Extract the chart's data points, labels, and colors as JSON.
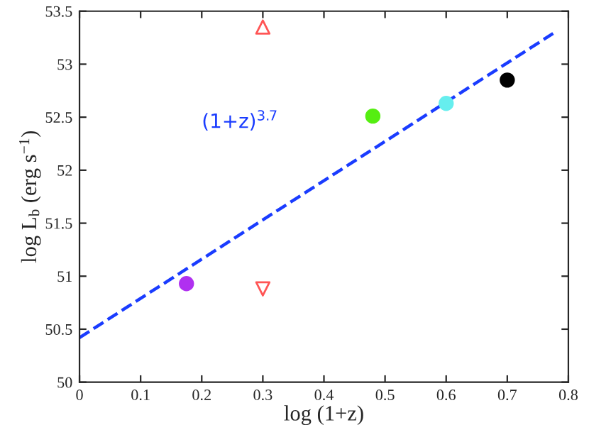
{
  "chart_data": {
    "type": "scatter",
    "xlabel": "log (1+z)",
    "ylabel": "log L$_{b}$ (erg s$^{−1}$)",
    "xlim": [
      0,
      0.8
    ],
    "ylim": [
      50,
      53.5
    ],
    "xticks": [
      0,
      0.1,
      0.2,
      0.3,
      0.4,
      0.5,
      0.6,
      0.7,
      0.8
    ],
    "yticks": [
      50,
      50.5,
      51,
      51.5,
      52,
      52.5,
      53,
      53.5
    ],
    "grid": false,
    "legend": false,
    "series": [
      {
        "type": "line",
        "color": "#1a3cff",
        "line_style": "dashed",
        "marker": "none",
        "x": [
          0,
          0.775
        ],
        "values": [
          50.42,
          53.29
        ]
      },
      {
        "color": "#b030f0",
        "marker": "circle",
        "x": [
          0.175
        ],
        "values": [
          50.93
        ]
      },
      {
        "color": "#55ee11",
        "marker": "circle",
        "x": [
          0.48
        ],
        "values": [
          52.51
        ]
      },
      {
        "color": "#66eeee",
        "marker": "circle",
        "x": [
          0.6
        ],
        "values": [
          52.63
        ]
      },
      {
        "color": "#000000",
        "marker": "circle",
        "x": [
          0.7
        ],
        "values": [
          52.85
        ]
      },
      {
        "color": "#ff5555",
        "marker": "triangle",
        "x": [
          0.3
        ],
        "values": [
          53.35
        ]
      },
      {
        "color": "#ff5555",
        "marker": "triangle_down",
        "x": [
          0.3
        ],
        "values": [
          50.88
        ]
      }
    ],
    "annotations": [
      "(1+z)$^{3.7}$"
    ]
  }
}
